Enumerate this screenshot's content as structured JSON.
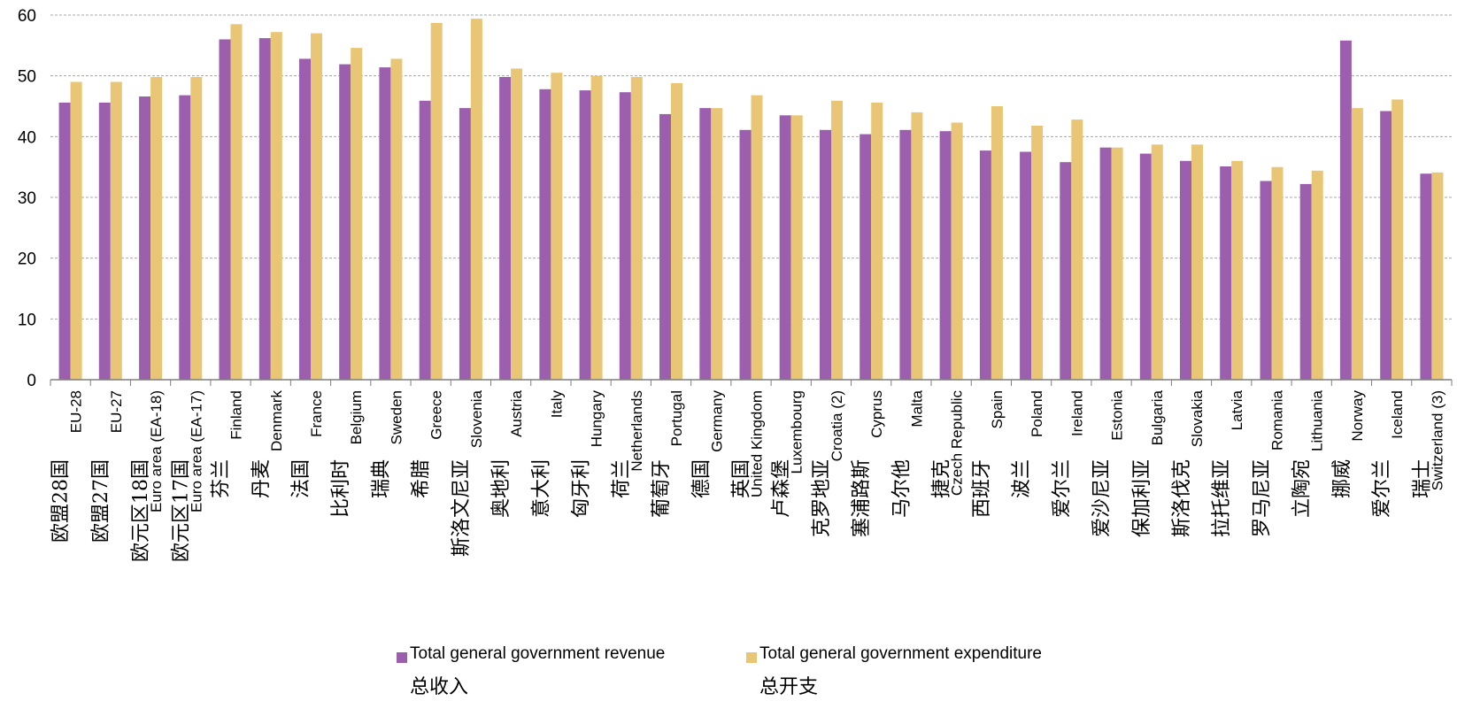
{
  "chart_data": {
    "type": "bar",
    "ylim": [
      0,
      60
    ],
    "yticks": [
      0,
      10,
      20,
      30,
      40,
      50,
      60
    ],
    "grid": true,
    "legend_position": "bottom",
    "categories": [
      {
        "en": "EU-28",
        "zh": "欧盟28国"
      },
      {
        "en": "EU-27",
        "zh": "欧盟27国"
      },
      {
        "en": "Euro area (EA-18)",
        "zh": "欧元区18国"
      },
      {
        "en": "Euro area (EA-17)",
        "zh": "欧元区17国"
      },
      {
        "en": "Finland",
        "zh": "芬兰"
      },
      {
        "en": "Denmark",
        "zh": "丹麦"
      },
      {
        "en": "France",
        "zh": "法国"
      },
      {
        "en": "Belgium",
        "zh": "比利时"
      },
      {
        "en": "Sweden",
        "zh": "瑞典"
      },
      {
        "en": "Greece",
        "zh": "希腊"
      },
      {
        "en": "Slovenia",
        "zh": "斯洛文尼亚"
      },
      {
        "en": "Austria",
        "zh": "奥地利"
      },
      {
        "en": "Italy",
        "zh": "意大利"
      },
      {
        "en": "Hungary",
        "zh": "匈牙利"
      },
      {
        "en": "Netherlands",
        "zh": "荷兰"
      },
      {
        "en": "Portugal",
        "zh": "葡萄牙"
      },
      {
        "en": "Germany",
        "zh": "德国"
      },
      {
        "en": "United Kingdom",
        "zh": "英国"
      },
      {
        "en": "Luxembourg",
        "zh": "卢森堡"
      },
      {
        "en": "Croatia (2)",
        "zh": "克罗地亚"
      },
      {
        "en": "Cyprus",
        "zh": "塞浦路斯"
      },
      {
        "en": "Malta",
        "zh": "马尔他"
      },
      {
        "en": "Czech Republic",
        "zh": "捷克"
      },
      {
        "en": "Spain",
        "zh": "西班牙"
      },
      {
        "en": "Poland",
        "zh": "波兰"
      },
      {
        "en": "Ireland",
        "zh": "爱尔兰"
      },
      {
        "en": "Estonia",
        "zh": "爱沙尼亚"
      },
      {
        "en": "Bulgaria",
        "zh": "保加利亚"
      },
      {
        "en": "Slovakia",
        "zh": "斯洛伐克"
      },
      {
        "en": "Latvia",
        "zh": "拉托维亚"
      },
      {
        "en": "Romania",
        "zh": "罗马尼亚"
      },
      {
        "en": "Lithuania",
        "zh": "立陶宛"
      },
      {
        "en": "Norway",
        "zh": "挪威"
      },
      {
        "en": "Iceland",
        "zh": "爱尔兰"
      },
      {
        "en": "Switzerland (3)",
        "zh": "瑞士"
      }
    ],
    "series": [
      {
        "name": "Total general government revenue",
        "name_zh": "总收入",
        "color": "#9B5FAE",
        "values": [
          45.6,
          45.6,
          46.6,
          46.8,
          56.0,
          56.2,
          52.8,
          51.9,
          51.4,
          45.9,
          44.7,
          49.8,
          47.8,
          47.6,
          47.3,
          43.7,
          44.7,
          41.1,
          43.5,
          41.1,
          40.4,
          41.1,
          40.9,
          37.7,
          37.5,
          35.8,
          38.2,
          37.2,
          36.0,
          35.1,
          32.7,
          32.2,
          55.8,
          44.2,
          33.9
        ]
      },
      {
        "name": "Total general government expenditure",
        "name_zh": "总开支",
        "color": "#E9C676",
        "values": [
          49.0,
          49.0,
          49.8,
          49.8,
          58.5,
          57.2,
          57.0,
          54.6,
          52.8,
          58.7,
          59.4,
          51.2,
          50.5,
          50.0,
          49.8,
          48.8,
          44.7,
          46.8,
          43.5,
          45.9,
          45.6,
          44.0,
          42.3,
          45.0,
          41.8,
          42.8,
          38.2,
          38.7,
          38.7,
          36.0,
          35.0,
          34.4,
          44.7,
          46.1,
          34.1
        ]
      }
    ]
  }
}
